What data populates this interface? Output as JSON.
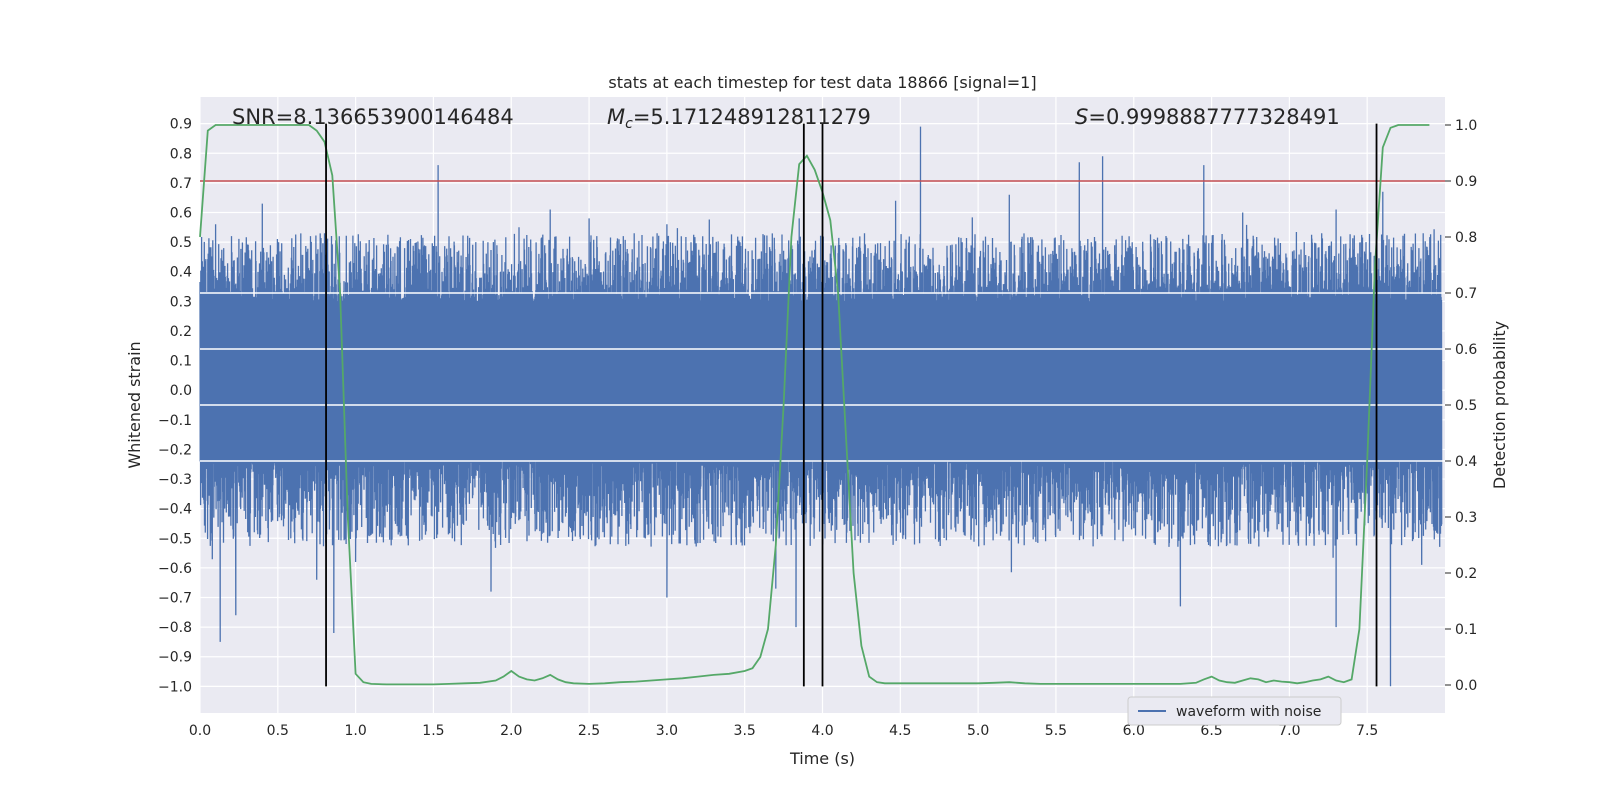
{
  "chart_data": {
    "type": "line",
    "title": "stats at each timestep for test data 18866 [signal=1]",
    "xlabel": "Time (s)",
    "ylabel": "Whitened strain",
    "y2label": "Detection probability",
    "xlim": [
      0.0,
      8.0
    ],
    "ylim": [
      -1.09,
      0.99
    ],
    "y2lim": [
      -0.05,
      1.05
    ],
    "xticks": [
      "0.0",
      "0.5",
      "1.0",
      "1.5",
      "2.0",
      "2.5",
      "3.0",
      "3.5",
      "4.0",
      "4.5",
      "5.0",
      "5.5",
      "6.0",
      "6.5",
      "7.0",
      "7.5"
    ],
    "yticks": [
      "0.9",
      "0.8",
      "0.7",
      "0.6",
      "0.5",
      "0.4",
      "0.3",
      "0.2",
      "0.1",
      "0.0",
      "−0.1",
      "−0.2",
      "−0.3",
      "−0.4",
      "−0.5",
      "−0.6",
      "−0.7",
      "−0.8",
      "−0.9",
      "−1.0"
    ],
    "y2ticks": [
      "1.0",
      "0.9",
      "0.8",
      "0.7",
      "0.6",
      "0.5",
      "0.4",
      "0.3",
      "0.2",
      "0.1",
      "0.0"
    ],
    "annotations": {
      "snr_label": "SNR=",
      "snr_value": "8.136653900146484",
      "mc_symbol": "M",
      "mc_subscript": "c",
      "mc_value": "=5.171248912811279",
      "s_symbol": "S",
      "s_value": "=0.9998887777328491"
    },
    "threshold": {
      "value": 0.9,
      "axis": "right",
      "color": "#c44e52"
    },
    "vertical_lines": [
      0.81,
      3.88,
      4.0,
      7.56
    ],
    "series": [
      {
        "name": "waveform with noise",
        "axis": "left",
        "color": "#4c72b0",
        "envelope": {
          "typical_max": 0.45,
          "typical_min": -0.45,
          "spike_max": [
            [
              0.1,
              0.56
            ],
            [
              0.4,
              0.63
            ],
            [
              0.8,
              0.53
            ],
            [
              1.53,
              0.76
            ],
            [
              2.05,
              0.55
            ],
            [
              2.25,
              0.61
            ],
            [
              2.5,
              0.58
            ],
            [
              3.0,
              0.56
            ],
            [
              3.85,
              0.58
            ],
            [
              4.47,
              0.64
            ],
            [
              4.63,
              0.89
            ],
            [
              5.2,
              0.66
            ],
            [
              5.65,
              0.77
            ],
            [
              5.8,
              0.79
            ],
            [
              6.45,
              0.76
            ],
            [
              6.7,
              0.6
            ],
            [
              7.3,
              0.61
            ],
            [
              7.6,
              0.67
            ]
          ],
          "spike_min": [
            [
              0.13,
              -0.85
            ],
            [
              0.23,
              -0.76
            ],
            [
              0.75,
              -0.64
            ],
            [
              0.86,
              -0.82
            ],
            [
              1.0,
              -0.58
            ],
            [
              1.87,
              -0.68
            ],
            [
              3.0,
              -0.7
            ],
            [
              3.7,
              -0.67
            ],
            [
              3.83,
              -0.8
            ],
            [
              6.3,
              -0.73
            ],
            [
              7.3,
              -0.8
            ],
            [
              7.65,
              -1.0
            ],
            [
              7.85,
              -0.59
            ]
          ]
        }
      },
      {
        "name": "",
        "axis": "right",
        "color": "#55a868",
        "x": [
          0.0,
          0.05,
          0.1,
          0.2,
          0.3,
          0.4,
          0.5,
          0.6,
          0.65,
          0.7,
          0.75,
          0.8,
          0.85,
          0.9,
          0.95,
          1.0,
          1.05,
          1.1,
          1.2,
          1.3,
          1.4,
          1.5,
          1.6,
          1.7,
          1.8,
          1.9,
          1.95,
          2.0,
          2.05,
          2.1,
          2.15,
          2.2,
          2.25,
          2.3,
          2.35,
          2.4,
          2.5,
          2.6,
          2.7,
          2.8,
          2.9,
          3.0,
          3.1,
          3.2,
          3.3,
          3.4,
          3.5,
          3.55,
          3.6,
          3.65,
          3.7,
          3.75,
          3.8,
          3.85,
          3.9,
          3.95,
          4.0,
          4.05,
          4.1,
          4.15,
          4.2,
          4.25,
          4.3,
          4.35,
          4.4,
          4.5,
          4.6,
          4.7,
          4.8,
          4.9,
          5.0,
          5.1,
          5.2,
          5.3,
          5.4,
          5.5,
          5.6,
          5.7,
          5.8,
          5.9,
          6.0,
          6.1,
          6.2,
          6.3,
          6.4,
          6.45,
          6.5,
          6.55,
          6.6,
          6.65,
          6.7,
          6.75,
          6.8,
          6.85,
          6.9,
          6.95,
          7.0,
          7.05,
          7.1,
          7.15,
          7.2,
          7.25,
          7.3,
          7.35,
          7.4,
          7.45,
          7.5,
          7.55,
          7.6,
          7.65,
          7.7,
          7.8,
          7.9
        ],
        "y": [
          0.8,
          0.99,
          1.0,
          1.0,
          1.0,
          1.0,
          1.0,
          1.0,
          1.0,
          1.0,
          0.99,
          0.97,
          0.91,
          0.7,
          0.3,
          0.02,
          0.005,
          0.002,
          0.001,
          0.001,
          0.001,
          0.001,
          0.002,
          0.003,
          0.004,
          0.008,
          0.015,
          0.025,
          0.015,
          0.01,
          0.008,
          0.012,
          0.018,
          0.01,
          0.005,
          0.003,
          0.002,
          0.003,
          0.005,
          0.006,
          0.008,
          0.01,
          0.012,
          0.015,
          0.018,
          0.02,
          0.025,
          0.03,
          0.05,
          0.1,
          0.25,
          0.5,
          0.8,
          0.93,
          0.945,
          0.92,
          0.88,
          0.83,
          0.7,
          0.45,
          0.2,
          0.07,
          0.015,
          0.005,
          0.003,
          0.003,
          0.003,
          0.003,
          0.003,
          0.003,
          0.003,
          0.004,
          0.005,
          0.003,
          0.002,
          0.002,
          0.002,
          0.002,
          0.002,
          0.002,
          0.002,
          0.002,
          0.002,
          0.002,
          0.004,
          0.01,
          0.015,
          0.008,
          0.005,
          0.004,
          0.008,
          0.012,
          0.01,
          0.005,
          0.008,
          0.006,
          0.005,
          0.003,
          0.005,
          0.008,
          0.01,
          0.015,
          0.008,
          0.005,
          0.01,
          0.1,
          0.4,
          0.75,
          0.96,
          0.995,
          1.0,
          1.0,
          1.0
        ]
      }
    ],
    "legend": {
      "entries": [
        "waveform with noise"
      ],
      "placement": "lower-right"
    },
    "grid": true,
    "style": {
      "background": "#eaeaf2",
      "grid_color": "#ffffff",
      "vline_color": "#000000"
    }
  }
}
